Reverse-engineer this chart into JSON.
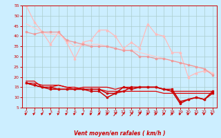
{
  "background_color": "#cceeff",
  "grid_color": "#aacccc",
  "xlabel": "Vent moyen/en rafales ( km/h )",
  "xlabel_color": "#cc0000",
  "tick_color": "#cc0000",
  "xlim": [
    -0.5,
    23.5
  ],
  "ylim": [
    5,
    55
  ],
  "yticks": [
    5,
    10,
    15,
    20,
    25,
    30,
    35,
    40,
    45,
    50,
    55
  ],
  "xticks": [
    0,
    1,
    2,
    3,
    4,
    5,
    6,
    7,
    8,
    9,
    10,
    11,
    12,
    13,
    14,
    15,
    16,
    17,
    18,
    19,
    20,
    21,
    22,
    23
  ],
  "series": [
    {
      "x": [
        0,
        1,
        2,
        3,
        4,
        5,
        6,
        7,
        8,
        9,
        10,
        11,
        12,
        13,
        14,
        15,
        16,
        17,
        18,
        19,
        20,
        21,
        22,
        23
      ],
      "y": [
        55,
        47,
        42,
        36,
        42,
        37,
        29,
        37,
        38,
        43,
        43,
        40,
        34,
        37,
        34,
        46,
        41,
        40,
        32,
        32,
        20,
        22,
        23,
        22
      ],
      "color": "#ffbbbb",
      "linewidth": 0.9,
      "marker": "^",
      "markersize": 2.0
    },
    {
      "x": [
        0,
        1,
        2,
        3,
        4,
        5,
        6,
        7,
        8,
        9,
        10,
        11,
        12,
        13,
        14,
        15,
        16,
        17,
        18,
        19,
        20,
        21,
        22,
        23
      ],
      "y": [
        46,
        44,
        42,
        41,
        41,
        38,
        35,
        36,
        36,
        36,
        35,
        34,
        33,
        33,
        32,
        31,
        30,
        29,
        28,
        27,
        26,
        25,
        24,
        22
      ],
      "color": "#ffcccc",
      "linewidth": 0.9,
      "marker": null
    },
    {
      "x": [
        0,
        1,
        2,
        3,
        4,
        5,
        6,
        7,
        8,
        9,
        10,
        11,
        12,
        13,
        14,
        15,
        16,
        17,
        18,
        19,
        20,
        21,
        22,
        23
      ],
      "y": [
        42,
        41,
        42,
        42,
        42,
        38,
        37,
        36,
        35,
        35,
        35,
        34,
        33,
        33,
        30,
        30,
        29,
        29,
        28,
        27,
        26,
        25,
        24,
        21
      ],
      "color": "#ee9999",
      "linewidth": 0.9,
      "marker": "s",
      "markersize": 2.0
    },
    {
      "x": [
        0,
        1,
        2,
        3,
        4,
        5,
        6,
        7,
        8,
        9,
        10,
        11,
        12,
        13,
        14,
        15,
        16,
        17,
        18,
        19,
        20,
        21,
        22,
        23
      ],
      "y": [
        18,
        18,
        15,
        15,
        16,
        15,
        14,
        15,
        15,
        15,
        15,
        14,
        15,
        15,
        15,
        15,
        15,
        14,
        13,
        13,
        13,
        13,
        13,
        13
      ],
      "color": "#dd0000",
      "linewidth": 0.9,
      "marker": null
    },
    {
      "x": [
        0,
        1,
        2,
        3,
        4,
        5,
        6,
        7,
        8,
        9,
        10,
        11,
        12,
        13,
        14,
        15,
        16,
        17,
        18,
        19,
        20,
        21,
        22,
        23
      ],
      "y": [
        17,
        17,
        16,
        16,
        16,
        15,
        15,
        14,
        14,
        14,
        13,
        13,
        13,
        13,
        13,
        13,
        13,
        12,
        12,
        12,
        12,
        12,
        12,
        12
      ],
      "color": "#dd0000",
      "linewidth": 0.9,
      "marker": null
    },
    {
      "x": [
        0,
        1,
        2,
        3,
        4,
        5,
        6,
        7,
        8,
        9,
        10,
        11,
        12,
        13,
        14,
        15,
        16,
        17,
        18,
        19,
        20,
        21,
        22,
        23
      ],
      "y": [
        17,
        16,
        15,
        15,
        14,
        14,
        14,
        14,
        14,
        14,
        12,
        12,
        15,
        14,
        15,
        15,
        15,
        14,
        13,
        7,
        9,
        10,
        9,
        13
      ],
      "color": "#cc0000",
      "linewidth": 1.1,
      "marker": "s",
      "markersize": 2.0
    },
    {
      "x": [
        0,
        1,
        2,
        3,
        4,
        5,
        6,
        7,
        8,
        9,
        10,
        11,
        12,
        13,
        14,
        15,
        16,
        17,
        18,
        19,
        20,
        21,
        22,
        23
      ],
      "y": [
        17,
        16,
        15,
        14,
        14,
        14,
        14,
        14,
        13,
        13,
        10,
        12,
        13,
        15,
        15,
        15,
        15,
        14,
        14,
        8,
        9,
        10,
        9,
        12
      ],
      "color": "#cc0000",
      "linewidth": 1.1,
      "marker": "s",
      "markersize": 2.0
    }
  ],
  "arrow_color": "#cc0000",
  "arrow_angles_deg": [
    5,
    5,
    5,
    5,
    5,
    5,
    5,
    10,
    10,
    15,
    15,
    20,
    20,
    20,
    20,
    15,
    15,
    15,
    15,
    10,
    10,
    10,
    5,
    5
  ]
}
